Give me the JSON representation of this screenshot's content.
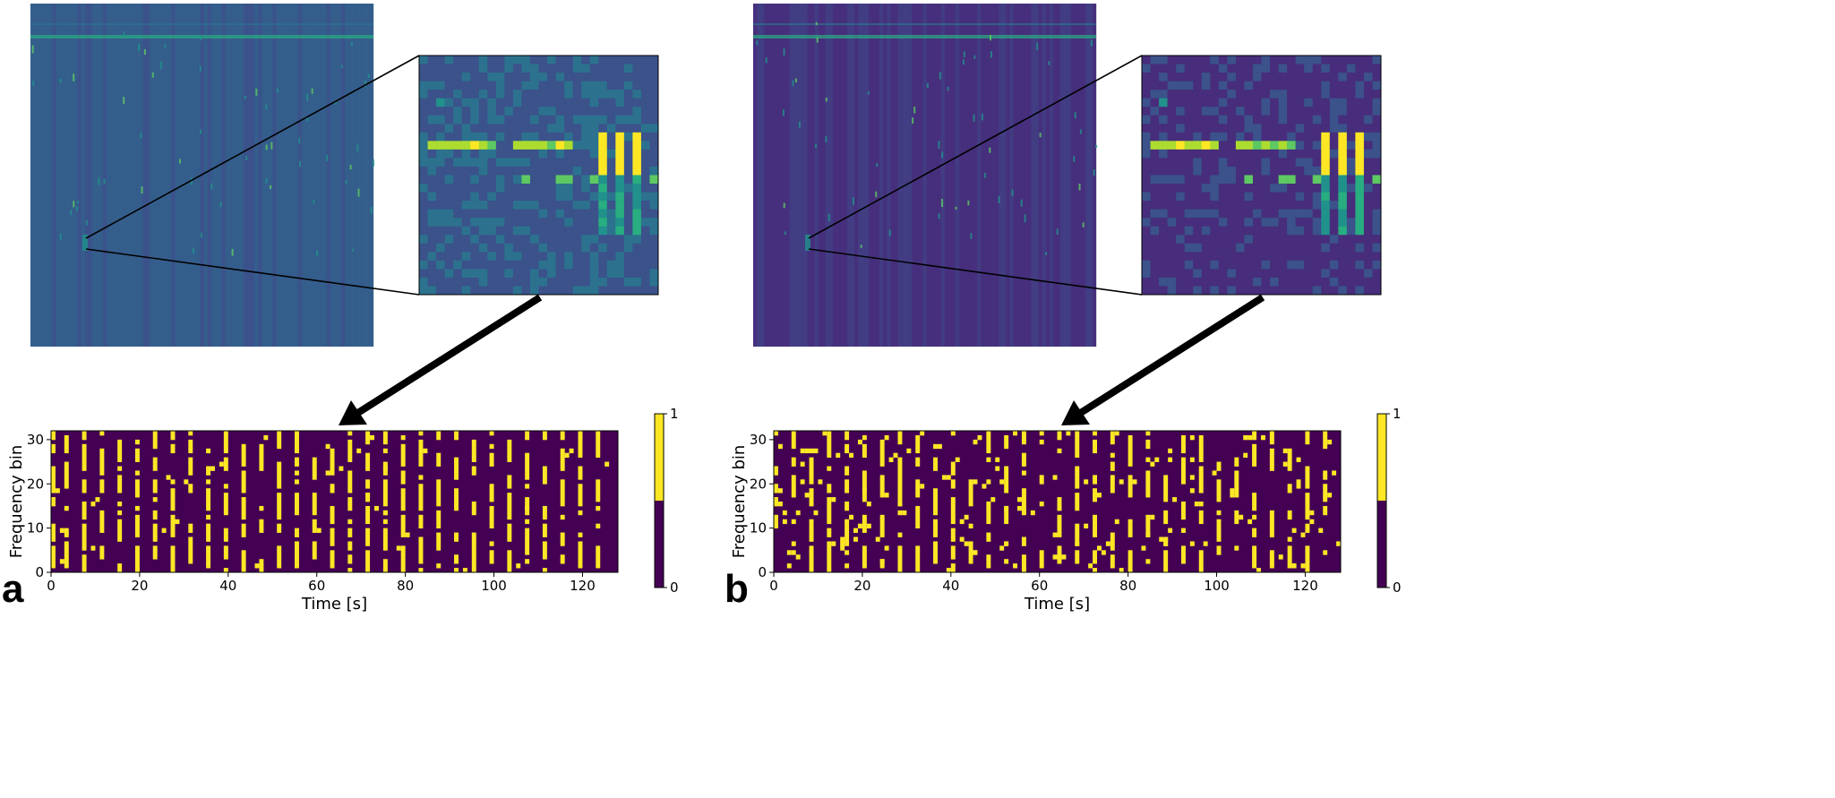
{
  "colors": {
    "background_dark": "#440154",
    "active_yellow": "#fde725",
    "mid_teal": "#21918c",
    "spectrogram_bg_a": "#3b528b",
    "spectrogram_bg_b": "#46307e"
  },
  "panels": [
    {
      "letter": "a",
      "zoom_arrow": "black-arrow",
      "chart_data": {
        "type": "heatmap",
        "title": "",
        "xlabel": "Time [s]",
        "ylabel": "Frequency bin",
        "xlim": [
          0,
          128
        ],
        "ylim": [
          0,
          32
        ],
        "xticks": [
          "0",
          "20",
          "40",
          "60",
          "80",
          "100",
          "120"
        ],
        "yticks": [
          "0",
          "10",
          "20",
          "30"
        ],
        "colorbar": {
          "min_label": "0",
          "max_label": "1",
          "levels": 2
        },
        "binary_density": 0.3,
        "active_columns": [
          0,
          3,
          7,
          11,
          15,
          19,
          23,
          27,
          31,
          35,
          39,
          43,
          47,
          51,
          55,
          59,
          63,
          67,
          71,
          75,
          79,
          83,
          87,
          91,
          95,
          99,
          103,
          107,
          111,
          115,
          119,
          123
        ]
      }
    },
    {
      "letter": "b",
      "zoom_arrow": "black-arrow",
      "chart_data": {
        "type": "heatmap",
        "title": "",
        "xlabel": "Time [s]",
        "ylabel": "Frequency bin",
        "xlim": [
          0,
          128
        ],
        "ylim": [
          0,
          32
        ],
        "xticks": [
          "0",
          "20",
          "40",
          "60",
          "80",
          "100",
          "120"
        ],
        "yticks": [
          "0",
          "10",
          "20",
          "30"
        ],
        "colorbar": {
          "min_label": "0",
          "max_label": "1",
          "levels": 2
        },
        "binary_density": 0.15,
        "active_columns": [
          0,
          4,
          8,
          12,
          16,
          20,
          24,
          28,
          32,
          36,
          40,
          44,
          48,
          52,
          56,
          60,
          64,
          68,
          72,
          76,
          80,
          84,
          88,
          92,
          96,
          100,
          104,
          108,
          112,
          116,
          120,
          124
        ]
      }
    }
  ]
}
